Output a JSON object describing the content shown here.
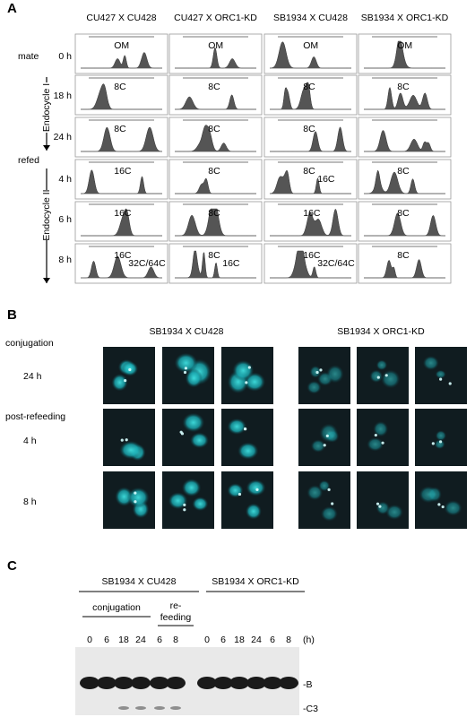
{
  "panel_a": {
    "label": "A",
    "columns": [
      "CU427 X CU428",
      "CU427 X ORC1-KD",
      "SB1934 X CU428",
      "SB1934 X ORC1-KD"
    ],
    "mate": "mate",
    "refed": "refed",
    "endocycle_1": "Endocycle I",
    "endocycle_2": "Endocycle II",
    "rows": [
      {
        "time": "0 h",
        "cells": [
          [
            "OM"
          ],
          [
            "OM"
          ],
          [
            "OM"
          ],
          [
            "OM"
          ]
        ]
      },
      {
        "time": "18 h",
        "cells": [
          [
            "8C"
          ],
          [
            "8C"
          ],
          [
            "8C"
          ],
          [
            "8C"
          ]
        ]
      },
      {
        "time": "24 h",
        "cells": [
          [
            "8C"
          ],
          [
            "8C"
          ],
          [
            "8C"
          ],
          []
        ]
      },
      {
        "time": "4 h",
        "cells": [
          [
            "16C"
          ],
          [
            "8C"
          ],
          [
            "8C",
            "16C"
          ],
          [
            "8C"
          ]
        ]
      },
      {
        "time": "6 h",
        "cells": [
          [
            "16C"
          ],
          [
            "8C"
          ],
          [
            "16C"
          ],
          [
            "8C"
          ]
        ]
      },
      {
        "time": "8 h",
        "cells": [
          [
            "16C",
            "32C/64C"
          ],
          [
            "8C",
            "16C"
          ],
          [
            "16C",
            "32C/64C"
          ],
          [
            "8C"
          ]
        ]
      }
    ]
  },
  "panel_b": {
    "label": "B",
    "columns": [
      "SB1934 X CU428",
      "SB1934 X ORC1-KD"
    ],
    "conjugation": "conjugation",
    "post_refeeding": "post-refeeding",
    "times": [
      "24 h",
      "4 h",
      "8 h"
    ]
  },
  "panel_c": {
    "label": "C",
    "groups": [
      "SB1934 X CU428",
      "SB1934 X ORC1-KD"
    ],
    "conjugation": "conjugation",
    "refeeding": [
      "re-",
      "feeding"
    ],
    "lanes": [
      "0",
      "6",
      "18",
      "24",
      "6",
      "8"
    ],
    "unit": "(h)",
    "bands": [
      "-B",
      "-C3"
    ]
  }
}
